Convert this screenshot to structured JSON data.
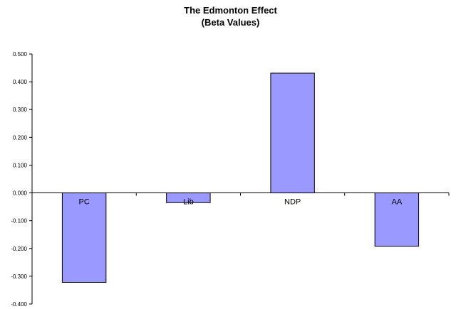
{
  "chart_data": {
    "type": "bar",
    "title": "The Edmonton Effect",
    "subtitle": "(Beta Values)",
    "categories": [
      "PC",
      "Lib",
      "NDP",
      "AA"
    ],
    "values": [
      -0.322,
      -0.035,
      0.431,
      -0.192
    ],
    "ylim": [
      -0.4,
      0.5
    ],
    "yticks": [
      "0.500",
      "0.400",
      "0.300",
      "0.200",
      "0.100",
      "0.000",
      "-0.100",
      "-0.200",
      "-0.300",
      "-0.400"
    ],
    "grid": false,
    "legend": "none",
    "bar_color": "#9999ff",
    "bar_border": "#000000"
  }
}
